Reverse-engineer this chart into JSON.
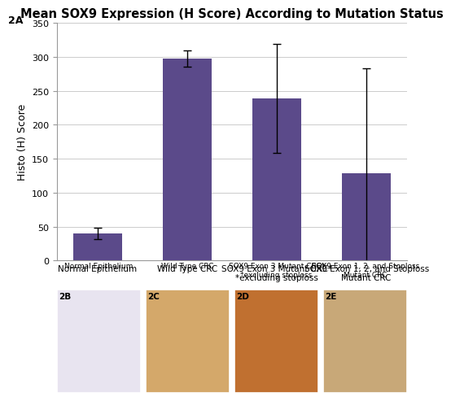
{
  "title": "Mean SOX9 Expression (H Score) According to Mutation Status",
  "ylabel": "Histo (H) Score",
  "categories": [
    "Normal Epithelium",
    "Wild Type CRC",
    "SOX9 Exon 3 Mutant CRC*\n*excluding stoploss",
    "SOX9 Exon 1, 2, and Stoploss\nMutant CRC"
  ],
  "values": [
    40,
    297,
    239,
    128
  ],
  "errors": [
    8,
    12,
    80,
    155
  ],
  "bar_color": "#5B4A8A",
  "ylim": [
    0,
    350
  ],
  "yticks": [
    0,
    50,
    100,
    150,
    200,
    250,
    300,
    350
  ],
  "background_color": "#ffffff",
  "title_fontsize": 10.5,
  "label_fontsize": 7.5,
  "tick_fontsize": 8,
  "ylabel_fontsize": 9,
  "label_2A": "2A",
  "sublabels": [
    "2B",
    "2C",
    "2D",
    "2E"
  ],
  "sub_titles": [
    "Normal Epithelium",
    "Wild Type CRC",
    "SOX9 Exon 3 Mutant CRC*\n*excluding stoploss",
    "SOX9 Exon 1, 2, and Stoploss\nMutant CRC"
  ],
  "panel_colors_bg": [
    "#E8E4F0",
    "#D4A86A",
    "#C07030",
    "#C8A878"
  ],
  "panel_detail_colors": [
    [
      "#C8C0E0",
      "#B0A0CC",
      "#9890B8"
    ],
    [
      "#C09050",
      "#A87840",
      "#D4B070"
    ],
    [
      "#A85820",
      "#903810",
      "#C07830"
    ],
    [
      "#B09060",
      "#987848",
      "#C8A870"
    ]
  ]
}
